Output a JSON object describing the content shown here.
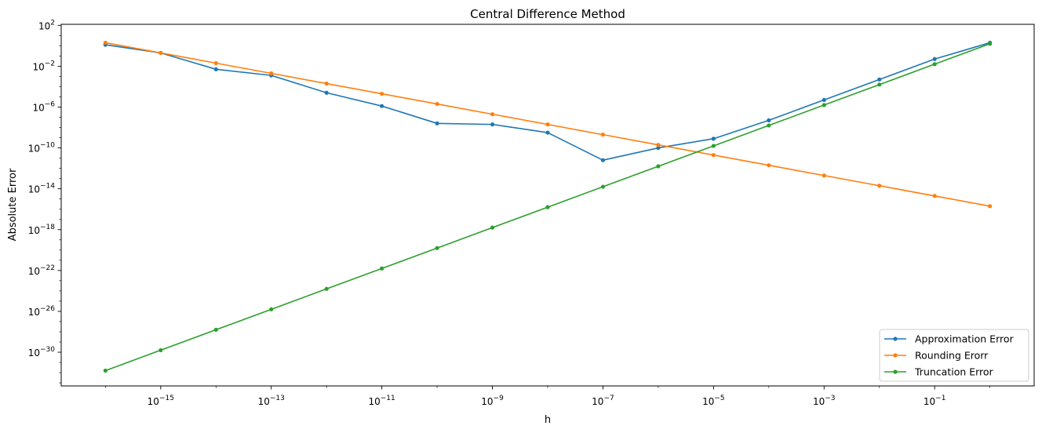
{
  "chart_data": {
    "type": "line",
    "title": "Central Difference Method",
    "xlabel": "h",
    "ylabel": "Absolute Error",
    "xscale": "log",
    "yscale": "log",
    "grid": false,
    "legend_position": "lower-right",
    "xlim_exp": [
      -16.8,
      0.8
    ],
    "ylim_exp": [
      -33.3,
      2.1
    ],
    "x_ticks": [
      {
        "base": "10",
        "exp": "−15",
        "value_exp": -15
      },
      {
        "base": "10",
        "exp": "−13",
        "value_exp": -13
      },
      {
        "base": "10",
        "exp": "−11",
        "value_exp": -11
      },
      {
        "base": "10",
        "exp": "−9",
        "value_exp": -9
      },
      {
        "base": "10",
        "exp": "−7",
        "value_exp": -7
      },
      {
        "base": "10",
        "exp": "−5",
        "value_exp": -5
      },
      {
        "base": "10",
        "exp": "−3",
        "value_exp": -3
      },
      {
        "base": "10",
        "exp": "−1",
        "value_exp": -1
      }
    ],
    "y_ticks": [
      {
        "base": "10",
        "exp": "2",
        "value_exp": 2
      },
      {
        "base": "10",
        "exp": "−2",
        "value_exp": -2
      },
      {
        "base": "10",
        "exp": "−6",
        "value_exp": -6
      },
      {
        "base": "10",
        "exp": "−10",
        "value_exp": -10
      },
      {
        "base": "10",
        "exp": "−14",
        "value_exp": -14
      },
      {
        "base": "10",
        "exp": "−18",
        "value_exp": -18
      },
      {
        "base": "10",
        "exp": "−22",
        "value_exp": -22
      },
      {
        "base": "10",
        "exp": "−26",
        "value_exp": -26
      },
      {
        "base": "10",
        "exp": "−30",
        "value_exp": -30
      }
    ],
    "x_exp": [
      -16,
      -15,
      -14,
      -13,
      -12,
      -11,
      -10,
      -9,
      -8,
      -7,
      -6,
      -5,
      -4,
      -3,
      -2,
      -1,
      0
    ],
    "series": [
      {
        "name": "Approximation Error",
        "color": "#1f77b4",
        "y_exp": [
          0.1,
          -0.7,
          -2.3,
          -2.9,
          -4.6,
          -5.9,
          -7.6,
          -7.7,
          -8.5,
          -11.2,
          -10.0,
          -9.1,
          -7.3,
          -5.3,
          -3.3,
          -1.3,
          0.3
        ]
      },
      {
        "name": "Rounding Erorr",
        "color": "#ff7f0e",
        "y_exp": [
          0.3,
          -0.7,
          -1.7,
          -2.7,
          -3.7,
          -4.7,
          -5.7,
          -6.7,
          -7.7,
          -8.7,
          -9.7,
          -10.7,
          -11.7,
          -12.7,
          -13.7,
          -14.7,
          -15.7
        ]
      },
      {
        "name": "Truncation Error",
        "color": "#2ca02c",
        "y_exp": [
          -31.8,
          -29.8,
          -27.8,
          -25.8,
          -23.8,
          -21.8,
          -19.8,
          -17.8,
          -15.8,
          -13.8,
          -11.8,
          -9.8,
          -7.8,
          -5.8,
          -3.8,
          -1.8,
          0.2
        ]
      }
    ]
  }
}
